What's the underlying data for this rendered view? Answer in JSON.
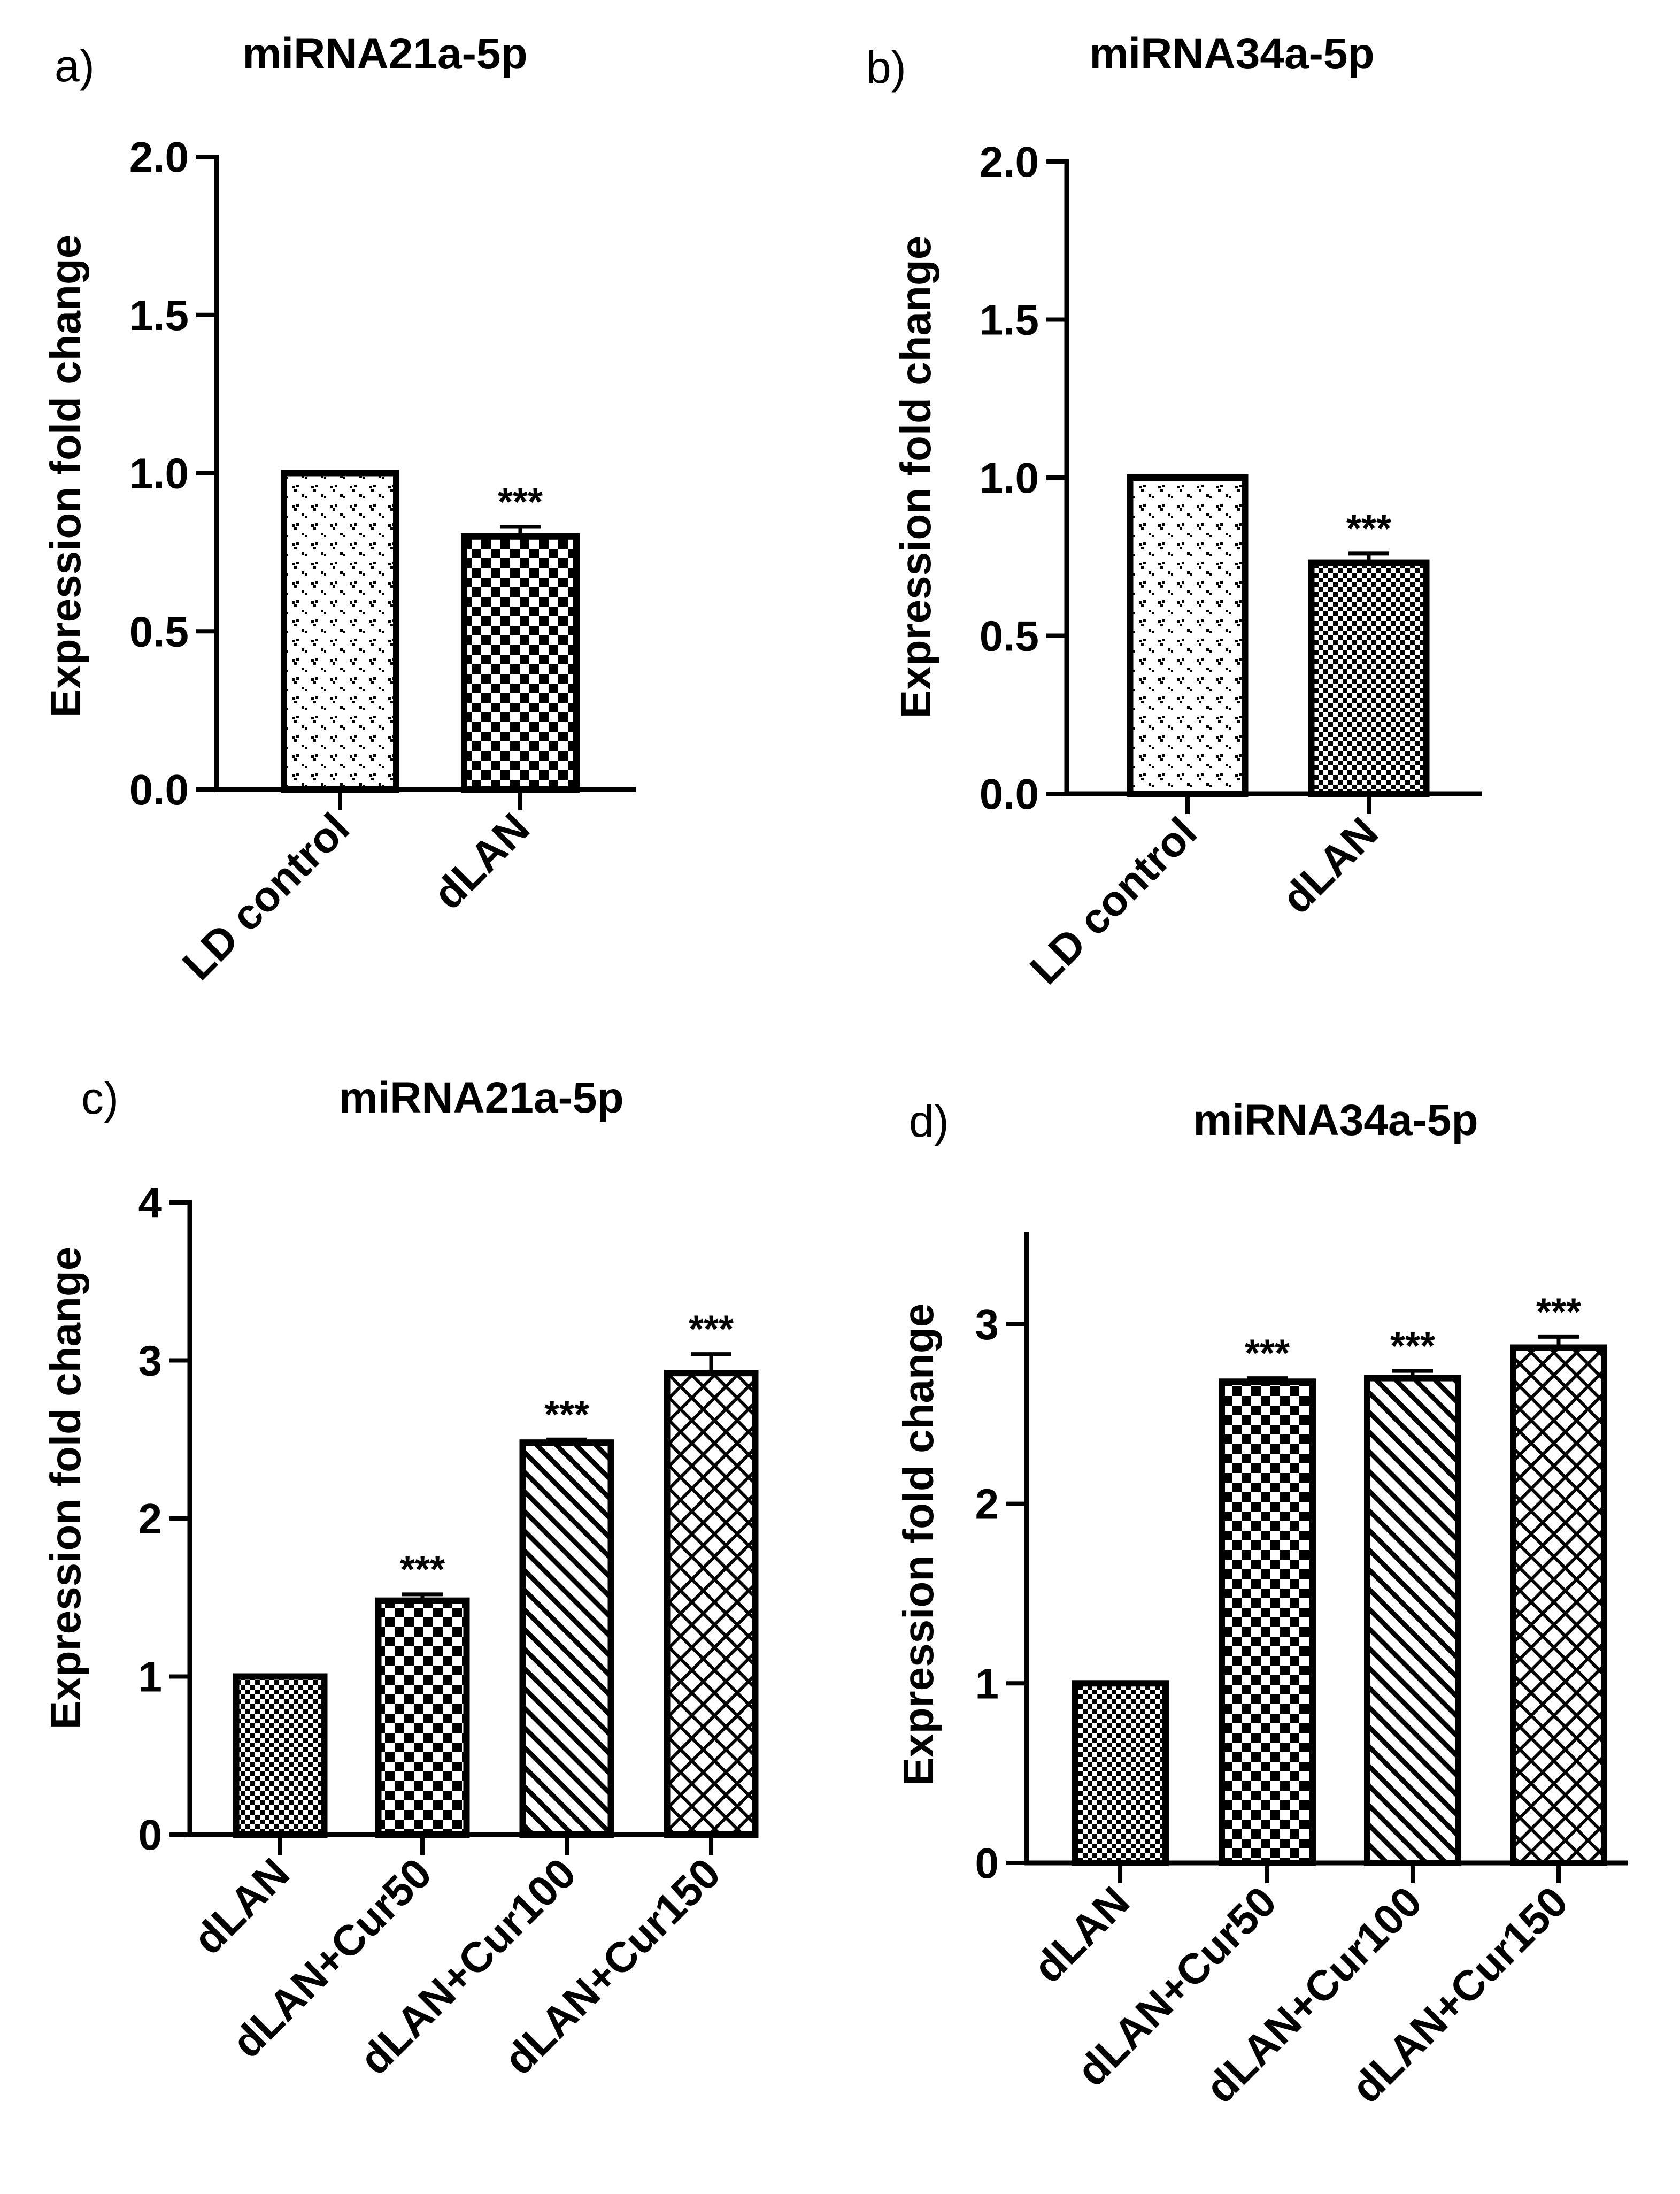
{
  "colors": {
    "ink": "#000000",
    "background": "#ffffff"
  },
  "chart_data": [
    {
      "type": "bar",
      "panel_label": "a)",
      "title": "miRNA21a-5p",
      "xlabel": "",
      "ylabel": "Expression fold change",
      "ylim": [
        0,
        2.0
      ],
      "yticks": [
        0,
        0.5,
        1.0,
        1.5,
        2.0
      ],
      "ytick_labels": [
        "0.0",
        "0.5",
        "1.0",
        "1.5",
        "2.0"
      ],
      "categories": [
        "LD control",
        "dLAN"
      ],
      "values": [
        1.0,
        0.8
      ],
      "errors": [
        0,
        0.03
      ],
      "annotations": [
        "",
        "***"
      ],
      "patterns": [
        "dots",
        "checker"
      ],
      "grid": false
    },
    {
      "type": "bar",
      "panel_label": "b)",
      "title": "miRNA34a-5p",
      "xlabel": "",
      "ylabel": "Expression fold change",
      "ylim": [
        0,
        2.0
      ],
      "yticks": [
        0,
        0.5,
        1.0,
        1.5,
        2.0
      ],
      "ytick_labels": [
        "0.0",
        "0.5",
        "1.0",
        "1.5",
        "2.0"
      ],
      "categories": [
        "LD control",
        "dLAN"
      ],
      "values": [
        1.0,
        0.73
      ],
      "errors": [
        0,
        0.03
      ],
      "annotations": [
        "",
        "***"
      ],
      "patterns": [
        "dots",
        "fine-checker"
      ],
      "grid": false
    },
    {
      "type": "bar",
      "panel_label": "c)",
      "title": "miRNA21a-5p",
      "xlabel": "",
      "ylabel": "Expression fold change",
      "ylim": [
        0,
        4
      ],
      "yticks": [
        0,
        1,
        2,
        3,
        4
      ],
      "ytick_labels": [
        "0",
        "1",
        "2",
        "3",
        "4"
      ],
      "categories": [
        "dLAN",
        "dLAN+Cur50",
        "dLAN+Cur100",
        "dLAN+Cur150"
      ],
      "values": [
        1.0,
        1.48,
        2.48,
        2.92
      ],
      "errors": [
        0,
        0.04,
        0.02,
        0.12
      ],
      "annotations": [
        "",
        "***",
        "***",
        "***"
      ],
      "patterns": [
        "fine-checker",
        "checker",
        "diagonal",
        "crosshatch"
      ],
      "grid": false
    },
    {
      "type": "bar",
      "panel_label": "d)",
      "title": "miRNA34a-5p",
      "xlabel": "",
      "ylabel": "Expression fold change",
      "ylim": [
        0,
        3.5
      ],
      "yticks": [
        0,
        1,
        2,
        3
      ],
      "ytick_labels": [
        "0",
        "1",
        "2",
        "3"
      ],
      "categories": [
        "dLAN",
        "dLAN+Cur50",
        "dLAN+Cur100",
        "dLAN+Cur150"
      ],
      "values": [
        1.0,
        2.68,
        2.7,
        2.87
      ],
      "errors": [
        0,
        0.02,
        0.04,
        0.06
      ],
      "annotations": [
        "",
        "***",
        "***",
        "***"
      ],
      "patterns": [
        "fine-checker",
        "checker",
        "diagonal",
        "crosshatch"
      ],
      "grid": false
    }
  ]
}
